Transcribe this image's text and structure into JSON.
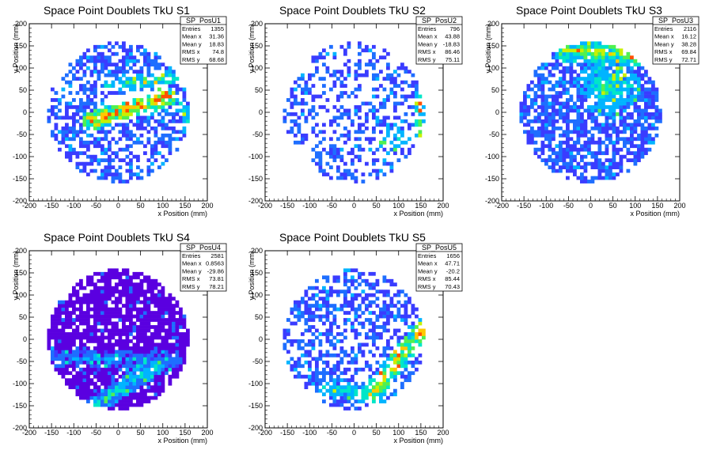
{
  "chart_data": [
    {
      "type": "heatmap",
      "title": "Space Point Doublets TkU S1",
      "xlabel": "x Position (mm)",
      "ylabel": "y Position (mm)",
      "xlim": [
        -200,
        200
      ],
      "ylim": [
        -200,
        200
      ],
      "xticks": [
        -200,
        -150,
        -100,
        -50,
        0,
        50,
        100,
        150,
        200
      ],
      "yticks": [
        -200,
        -150,
        -100,
        -50,
        0,
        50,
        100,
        150,
        200
      ],
      "stats": {
        "name": "SP_PosU1",
        "rows": [
          {
            "label": "Entries",
            "value": "1355"
          },
          {
            "label": "Mean x",
            "value": "31.36"
          },
          {
            "label": "Mean y",
            "value": "18.83"
          },
          {
            "label": "RMS x",
            "value": "74.8"
          },
          {
            "label": "RMS y",
            "value": "68.68"
          }
        ]
      },
      "density": {
        "fill": 0.55,
        "seed": 11,
        "hotspots": [
          {
            "type": "band",
            "x1": -60,
            "y1": -20,
            "x2": 110,
            "y2": 35,
            "width": 22,
            "level": 0.85
          },
          {
            "type": "band",
            "x1": -20,
            "y1": 60,
            "x2": 140,
            "y2": 80,
            "width": 16,
            "level": 0.45
          },
          {
            "type": "band",
            "x1": 140,
            "y1": 20,
            "x2": 170,
            "y2": -60,
            "width": 14,
            "level": 0.35
          }
        ],
        "empty": [
          {
            "type": "band",
            "x1": -40,
            "y1": 20,
            "x2": 100,
            "y2": 55,
            "width": 10
          }
        ]
      }
    },
    {
      "type": "heatmap",
      "title": "Space Point Doublets TkU S2",
      "xlabel": "x Position (mm)",
      "ylabel": "y Position (mm)",
      "xlim": [
        -200,
        200
      ],
      "ylim": [
        -200,
        200
      ],
      "xticks": [
        -200,
        -150,
        -100,
        -50,
        0,
        50,
        100,
        150,
        200
      ],
      "yticks": [
        -200,
        -150,
        -100,
        -50,
        0,
        50,
        100,
        150,
        200
      ],
      "stats": {
        "name": "SP_PosU2",
        "rows": [
          {
            "label": "Entries",
            "value": "796"
          },
          {
            "label": "Mean x",
            "value": "43.88"
          },
          {
            "label": "Mean y",
            "value": "-18.83"
          },
          {
            "label": "RMS x",
            "value": "86.46"
          },
          {
            "label": "RMS y",
            "value": "75.11"
          }
        ]
      },
      "density": {
        "fill": 0.38,
        "seed": 23,
        "hotspots": [
          {
            "type": "band",
            "x1": 150,
            "y1": 30,
            "x2": 150,
            "y2": -80,
            "width": 18,
            "level": 0.5
          },
          {
            "type": "blob",
            "x": 90,
            "y": -60,
            "r": 40,
            "level": 0.3
          }
        ],
        "empty": []
      }
    },
    {
      "type": "heatmap",
      "title": "Space Point Doublets TkU S3",
      "xlabel": "x Position (mm)",
      "ylabel": "y Position (mm)",
      "xlim": [
        -200,
        200
      ],
      "ylim": [
        -200,
        200
      ],
      "xticks": [
        -200,
        -150,
        -100,
        -50,
        0,
        50,
        100,
        150,
        200
      ],
      "yticks": [
        -200,
        -150,
        -100,
        -50,
        0,
        50,
        100,
        150,
        200
      ],
      "stats": {
        "name": "SP_PosU3",
        "rows": [
          {
            "label": "Entries",
            "value": "2116"
          },
          {
            "label": "Mean x",
            "value": "16.12"
          },
          {
            "label": "Mean y",
            "value": "38.28"
          },
          {
            "label": "RMS x",
            "value": "69.84"
          },
          {
            "label": "RMS y",
            "value": "72.71"
          }
        ]
      },
      "density": {
        "fill": 0.7,
        "seed": 37,
        "hotspots": [
          {
            "type": "band",
            "x1": -60,
            "y1": 140,
            "x2": 110,
            "y2": 130,
            "width": 25,
            "level": 0.6
          },
          {
            "type": "blob",
            "x": 40,
            "y": 60,
            "r": 70,
            "level": 0.4
          }
        ],
        "empty": []
      }
    },
    {
      "type": "heatmap",
      "title": "Space Point Doublets TkU S4",
      "xlabel": "x Position (mm)",
      "ylabel": "y Position (mm)",
      "xlim": [
        -200,
        200
      ],
      "ylim": [
        -200,
        200
      ],
      "xticks": [
        -200,
        -150,
        -100,
        -50,
        0,
        50,
        100,
        150,
        200
      ],
      "yticks": [
        -200,
        -150,
        -100,
        -50,
        0,
        50,
        100,
        150,
        200
      ],
      "stats": {
        "name": "SP_PosU4",
        "rows": [
          {
            "label": "Entries",
            "value": "2581"
          },
          {
            "label": "Mean x",
            "value": "0.8563"
          },
          {
            "label": "Mean y",
            "value": "-29.86"
          },
          {
            "label": "RMS x",
            "value": "73.81"
          },
          {
            "label": "RMS y",
            "value": "78.21"
          }
        ]
      },
      "density": {
        "fill": 0.85,
        "seed": 41,
        "base": 0.0,
        "hotspots": [
          {
            "type": "band",
            "x1": -50,
            "y1": -150,
            "x2": 80,
            "y2": -60,
            "width": 22,
            "level": 0.55
          },
          {
            "type": "band",
            "x1": -150,
            "y1": -40,
            "x2": 120,
            "y2": -50,
            "width": 25,
            "level": 0.3
          }
        ],
        "empty": []
      }
    },
    {
      "type": "heatmap",
      "title": "Space Point Doublets TkU S5",
      "xlabel": "x Position (mm)",
      "ylabel": "y Position (mm)",
      "xlim": [
        -200,
        200
      ],
      "ylim": [
        -200,
        200
      ],
      "xticks": [
        -200,
        -150,
        -100,
        -50,
        0,
        50,
        100,
        150,
        200
      ],
      "yticks": [
        -200,
        -150,
        -100,
        -50,
        0,
        50,
        100,
        150,
        200
      ],
      "stats": {
        "name": "SP_PosU5",
        "rows": [
          {
            "label": "Entries",
            "value": "1656"
          },
          {
            "label": "Mean x",
            "value": "47.71"
          },
          {
            "label": "Mean y",
            "value": "-20.2"
          },
          {
            "label": "RMS x",
            "value": "85.44"
          },
          {
            "label": "RMS y",
            "value": "70.43"
          }
        ]
      },
      "density": {
        "fill": 0.5,
        "seed": 53,
        "hotspots": [
          {
            "type": "band",
            "x1": 160,
            "y1": 30,
            "x2": 40,
            "y2": -120,
            "width": 22,
            "level": 0.75
          },
          {
            "type": "band",
            "x1": -60,
            "y1": -110,
            "x2": 60,
            "y2": -130,
            "width": 18,
            "level": 0.35
          }
        ],
        "empty": []
      }
    }
  ],
  "colors": {
    "background": "#ffffff",
    "frame": "#000000",
    "palette": [
      "#5a00e0",
      "#3a3cff",
      "#1e6eff",
      "#00b4ff",
      "#00e6c8",
      "#50f050",
      "#c8f000",
      "#ffc800",
      "#ff5000"
    ]
  }
}
